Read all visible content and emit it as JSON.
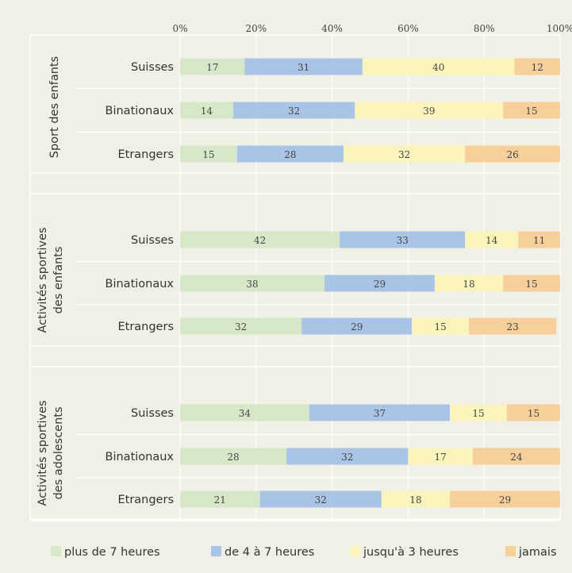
{
  "chart_data": {
    "type": "bar",
    "orientation": "horizontal",
    "stacked": true,
    "xlim": [
      0,
      100
    ],
    "x_ticks": [
      "0%",
      "20%",
      "40%",
      "60%",
      "80%",
      "100%"
    ],
    "groups": [
      {
        "label": "Sport des enfants",
        "rows": [
          {
            "label": "Suisses",
            "values": [
              17,
              31,
              40,
              12
            ]
          },
          {
            "label": "Binationaux",
            "values": [
              14,
              32,
              39,
              15
            ]
          },
          {
            "label": "Etrangers",
            "values": [
              15,
              28,
              32,
              26
            ]
          }
        ]
      },
      {
        "label": "Activités sportives des enfants",
        "label_lines": [
          "Activités sportives",
          "des enfants"
        ],
        "rows": [
          {
            "label": "Suisses",
            "values": [
              42,
              33,
              14,
              11
            ]
          },
          {
            "label": "Binationaux",
            "values": [
              38,
              29,
              18,
              15
            ]
          },
          {
            "label": "Etrangers",
            "values": [
              32,
              29,
              15,
              23
            ]
          }
        ]
      },
      {
        "label": "Activités sportives des adolescents",
        "label_lines": [
          "Activités sportives",
          "des adolescents"
        ],
        "rows": [
          {
            "label": "Suisses",
            "values": [
              34,
              37,
              15,
              15
            ]
          },
          {
            "label": "Binationaux",
            "values": [
              28,
              32,
              17,
              24
            ]
          },
          {
            "label": "Etrangers",
            "values": [
              21,
              32,
              18,
              29
            ]
          }
        ]
      }
    ],
    "series": [
      {
        "name": "plus de 7 heures",
        "color": "#d6e8c8"
      },
      {
        "name": "de 4 à 7 heures",
        "color": "#a9c4e6"
      },
      {
        "name": "jusqu'à 3 heures",
        "color": "#fbf4bc"
      },
      {
        "name": "jamais",
        "color": "#f6cf9a"
      }
    ],
    "legend": "bottom",
    "grid": true
  }
}
